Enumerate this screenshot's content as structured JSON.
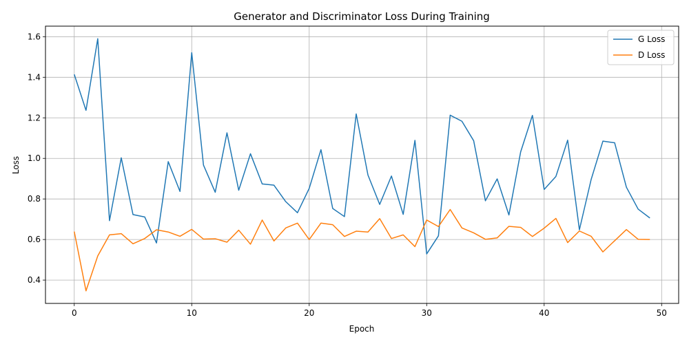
{
  "chart_data": {
    "type": "line",
    "title": "Generator and Discriminator Loss During Training",
    "xlabel": "Epoch",
    "ylabel": "Loss",
    "xlim": [
      -2.45,
      51.45
    ],
    "ylim": [
      0.285,
      1.652
    ],
    "xticks": [
      0,
      10,
      20,
      30,
      40,
      50
    ],
    "yticks": [
      0.4,
      0.6,
      0.8,
      1.0,
      1.2,
      1.4,
      1.6
    ],
    "ytick_labels": [
      "0.4",
      "0.6",
      "0.8",
      "1.0",
      "1.2",
      "1.4",
      "1.6"
    ],
    "grid": true,
    "legend_position": "top-right",
    "x": [
      0,
      1,
      2,
      3,
      4,
      5,
      6,
      7,
      8,
      9,
      10,
      11,
      12,
      13,
      14,
      15,
      16,
      17,
      18,
      19,
      20,
      21,
      22,
      23,
      24,
      25,
      26,
      27,
      28,
      29,
      30,
      31,
      32,
      33,
      34,
      35,
      36,
      37,
      38,
      39,
      40,
      41,
      42,
      43,
      44,
      45,
      46,
      47,
      48,
      49
    ],
    "series": [
      {
        "name": "G Loss",
        "color": "#1f77b4",
        "values": [
          1.414,
          1.237,
          1.59,
          0.693,
          1.003,
          0.723,
          0.711,
          0.583,
          0.984,
          0.837,
          1.521,
          0.967,
          0.833,
          1.126,
          0.843,
          1.023,
          0.874,
          0.868,
          0.787,
          0.732,
          0.852,
          1.043,
          0.753,
          0.713,
          1.219,
          0.918,
          0.773,
          0.913,
          0.724,
          1.089,
          0.529,
          0.618,
          1.213,
          1.183,
          1.087,
          0.791,
          0.899,
          0.721,
          1.032,
          1.212,
          0.847,
          0.911,
          1.09,
          0.648,
          0.896,
          1.085,
          1.077,
          0.858,
          0.75,
          0.706
        ]
      },
      {
        "name": "D Loss",
        "color": "#ff7f0e",
        "values": [
          0.639,
          0.347,
          0.519,
          0.623,
          0.629,
          0.579,
          0.605,
          0.648,
          0.637,
          0.616,
          0.65,
          0.602,
          0.604,
          0.587,
          0.646,
          0.577,
          0.696,
          0.593,
          0.657,
          0.681,
          0.6,
          0.681,
          0.673,
          0.615,
          0.641,
          0.637,
          0.703,
          0.605,
          0.623,
          0.565,
          0.696,
          0.664,
          0.748,
          0.657,
          0.633,
          0.601,
          0.608,
          0.665,
          0.66,
          0.615,
          0.656,
          0.704,
          0.585,
          0.642,
          0.616,
          0.539,
          0.594,
          0.649,
          0.601,
          0.6
        ]
      }
    ]
  }
}
